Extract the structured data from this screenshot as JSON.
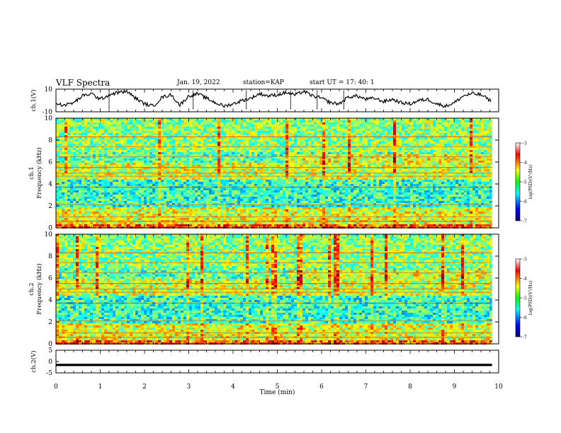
{
  "header": {
    "title": "VLF Spectra",
    "date": "Jan. 19, 2022",
    "station": "station=KAP",
    "start_ut": "start UT =  17: 40: 1"
  },
  "chart_data": [
    {
      "type": "line",
      "panel": "ch1-waveform",
      "ylabel": "ch.1(V)",
      "ylim": [
        -10,
        10
      ],
      "yticks": [
        "10",
        "-10"
      ],
      "xlim": [
        0,
        10
      ],
      "x_end": 9.85,
      "series": [
        {
          "x": [
            0,
            0.2,
            0.4,
            0.6,
            0.8,
            1.0,
            1.2,
            1.4,
            1.6,
            1.8,
            2.0,
            2.2,
            2.4,
            2.6,
            2.8,
            3.0,
            3.2,
            3.4,
            3.6,
            3.8,
            4.0,
            4.2,
            4.4,
            4.6,
            4.8,
            5.0,
            5.2,
            5.4,
            5.6,
            5.8,
            6.0,
            6.2,
            6.4,
            6.6,
            6.8,
            7.0,
            7.2,
            7.4,
            7.6,
            7.8,
            8.0,
            8.2,
            8.4,
            8.6,
            8.8,
            9.0,
            9.2,
            9.4,
            9.6,
            9.85
          ],
          "values": [
            -3,
            -4,
            -2,
            4,
            6,
            1,
            5,
            7,
            8,
            2,
            -3,
            -5,
            3,
            5,
            -4,
            4,
            6,
            2,
            -2,
            -5,
            -3,
            0,
            2,
            6,
            4,
            5,
            7,
            5,
            8,
            4,
            2,
            -2,
            -3,
            3,
            4,
            1,
            2,
            -1,
            1,
            -2,
            -3,
            0,
            1,
            -3,
            -5,
            -2,
            4,
            6,
            5,
            -1
          ]
        }
      ]
    },
    {
      "type": "heatmap",
      "panel": "ch1-spectrogram",
      "ylabel": "Frequency (kHz)",
      "ylabel2": "ch.1",
      "ylim": [
        0,
        10
      ],
      "yticks": [
        "0",
        "2",
        "4",
        "6",
        "8",
        "10"
      ],
      "xlim": [
        0,
        10
      ],
      "colorbar": {
        "label": "log(PSD)(V²/Hz)",
        "range": [
          -7,
          -3
        ],
        "ticks": [
          "-3",
          "-4",
          "-5",
          "-6",
          "-7"
        ]
      }
    },
    {
      "type": "heatmap",
      "panel": "ch2-spectrogram",
      "ylabel": "Frequency (kHz)",
      "ylabel2": "ch.2",
      "ylim": [
        0,
        10
      ],
      "yticks": [
        "0",
        "2",
        "4",
        "6",
        "8",
        "10"
      ],
      "xlim": [
        0,
        10
      ],
      "colorbar": {
        "label": "log(PSD)(V²/Hz)",
        "range": [
          -7,
          -3
        ],
        "ticks": [
          "-3",
          "-4",
          "-5",
          "-6",
          "-7"
        ]
      }
    },
    {
      "type": "line",
      "panel": "ch2-waveform",
      "ylabel": "ch.2(V)",
      "ylim": [
        -5,
        5
      ],
      "yticks": [
        "5",
        "0",
        "-5"
      ],
      "xlim": [
        0,
        10
      ],
      "x_end": 9.85,
      "series": [
        {
          "x": [
            0,
            9.85
          ],
          "values": [
            -1.5,
            -1.5
          ]
        }
      ]
    }
  ],
  "x_axis": {
    "label": "Time (min)",
    "ticks": [
      "0",
      "1",
      "2",
      "3",
      "4",
      "5",
      "6",
      "7",
      "8",
      "9",
      "10"
    ]
  }
}
